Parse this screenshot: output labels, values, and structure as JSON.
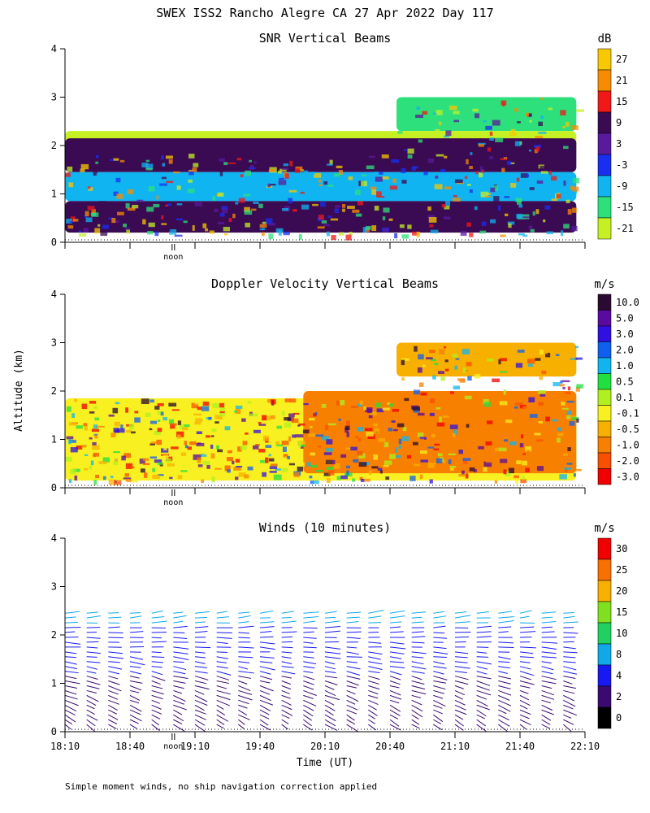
{
  "title": "SWEX ISS2 Rancho Alegre CA  27 Apr 2022 Day 117",
  "footer_note": "Simple moment winds, no ship navigation correction applied",
  "shared_axes": {
    "ylabel": "Altitude (km)",
    "xlabel": "Time (UT)",
    "y_ticks": [
      "0",
      "1",
      "2",
      "3",
      "4"
    ],
    "ylim": [
      0,
      4
    ],
    "x_ticks": [
      "18:10",
      "18:40",
      "19:10",
      "19:40",
      "20:10",
      "20:40",
      "21:10",
      "21:40",
      "22:10"
    ],
    "xlim_minutes_utc": [
      1090,
      1330
    ],
    "noon_marker_label": "noon",
    "noon_marker_minutes_utc": 1140
  },
  "chart_data": [
    {
      "type": "heatmap",
      "title": "SNR Vertical Beams",
      "units": "dB",
      "colorbar_labels": [
        "27",
        "21",
        "15",
        "9",
        "3",
        "-3",
        "-9",
        "-15",
        "-21"
      ],
      "colorbar_colors": [
        "#f8c800",
        "#f88c00",
        "#f01818",
        "#3a0a52",
        "#5a1a9e",
        "#1a2ef0",
        "#10b4f0",
        "#2ee07c",
        "#c4f024"
      ],
      "layers": [
        {
          "name": "upper cloud band",
          "color": "#2ee07c",
          "t_start": 1243,
          "t_end": 1326,
          "z_bottom": 2.3,
          "z_top": 3.0
        },
        {
          "name": "inversion top",
          "color": "#c4f024",
          "t_start": 1090,
          "t_end": 1326,
          "z_bottom": 1.75,
          "z_top": 2.3
        },
        {
          "name": "elevated layer",
          "color": "#3a0a52",
          "t_start": 1090,
          "t_end": 1326,
          "z_bottom": 1.45,
          "z_top": 2.15
        },
        {
          "name": "mid layer",
          "color": "#10b4f0",
          "t_start": 1090,
          "t_end": 1326,
          "z_bottom": 0.85,
          "z_top": 1.45
        },
        {
          "name": "boundary layer",
          "color": "#3a0a52",
          "t_start": 1090,
          "t_end": 1326,
          "z_bottom": 0.2,
          "z_top": 0.85
        }
      ]
    },
    {
      "type": "heatmap",
      "title": "Doppler Velocity Vertical Beams",
      "units": "m/s",
      "colorbar_labels": [
        "10.0",
        "5.0",
        "3.0",
        "2.0",
        "1.0",
        "0.5",
        "0.1",
        "-0.1",
        "-0.5",
        "-1.0",
        "-2.0",
        "-3.0"
      ],
      "colorbar_colors": [
        "#2a0a30",
        "#5a0a9e",
        "#3010e0",
        "#1060f0",
        "#10b4f0",
        "#20e040",
        "#b0f020",
        "#f8f020",
        "#f8b000",
        "#f88000",
        "#f85000",
        "#f00000"
      ],
      "layers": [
        {
          "name": "upper echo layer",
          "color": "#f8b000",
          "t_start": 1243,
          "t_end": 1326,
          "z_bottom": 2.3,
          "z_top": 3.0
        },
        {
          "name": "sub-inversion echoes",
          "color": "#f8f020",
          "t_start": 1090,
          "t_end": 1326,
          "z_bottom": 0.15,
          "z_top": 1.85
        },
        {
          "name": "downward motion region",
          "color": "#f88000",
          "t_start": 1200,
          "t_end": 1326,
          "z_bottom": 0.3,
          "z_top": 2.0
        }
      ]
    },
    {
      "type": "barbs",
      "title": "Winds (10 minutes)",
      "units": "m/s",
      "colorbar_labels": [
        "30",
        "25",
        "20",
        "15",
        "10",
        "8",
        "4",
        "2",
        "0"
      ],
      "colorbar_colors": [
        "#f00000",
        "#f87000",
        "#f8b000",
        "#80e020",
        "#20d060",
        "#10a8e8",
        "#1818f0",
        "#3a0a70",
        "#000000"
      ],
      "profile_times_minutes_utc": [
        1090,
        1100,
        1110,
        1120,
        1130,
        1140,
        1150,
        1160,
        1170,
        1180,
        1190,
        1200,
        1210,
        1220,
        1230,
        1240,
        1250,
        1260,
        1270,
        1280,
        1290,
        1300,
        1310,
        1320
      ],
      "profile_top_km": 2.5
    }
  ]
}
